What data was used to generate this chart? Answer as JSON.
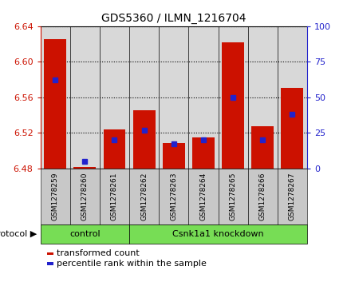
{
  "title": "GDS5360 / ILMN_1216704",
  "samples": [
    "GSM1278259",
    "GSM1278260",
    "GSM1278261",
    "GSM1278262",
    "GSM1278263",
    "GSM1278264",
    "GSM1278265",
    "GSM1278266",
    "GSM1278267"
  ],
  "transformed_count": [
    6.625,
    6.481,
    6.524,
    6.545,
    6.508,
    6.515,
    6.622,
    6.527,
    6.57
  ],
  "percentile_rank": [
    62,
    5,
    20,
    27,
    17,
    20,
    50,
    20,
    38
  ],
  "y_min": 6.48,
  "y_max": 6.64,
  "y_ticks_left": [
    6.48,
    6.52,
    6.56,
    6.6,
    6.64
  ],
  "y_ticks_right": [
    0,
    25,
    50,
    75,
    100
  ],
  "bar_color": "#cc1100",
  "percentile_color": "#2222cc",
  "bar_width": 0.75,
  "control_count": 3,
  "group_color": "#77dd55",
  "control_label": "control",
  "knockdown_label": "Csnk1a1 knockdown",
  "protocol_label": "protocol",
  "legend_count_label": "transformed count",
  "legend_pct_label": "percentile rank within the sample",
  "plot_bg": "#d8d8d8",
  "cell_bg": "#c8c8c8"
}
